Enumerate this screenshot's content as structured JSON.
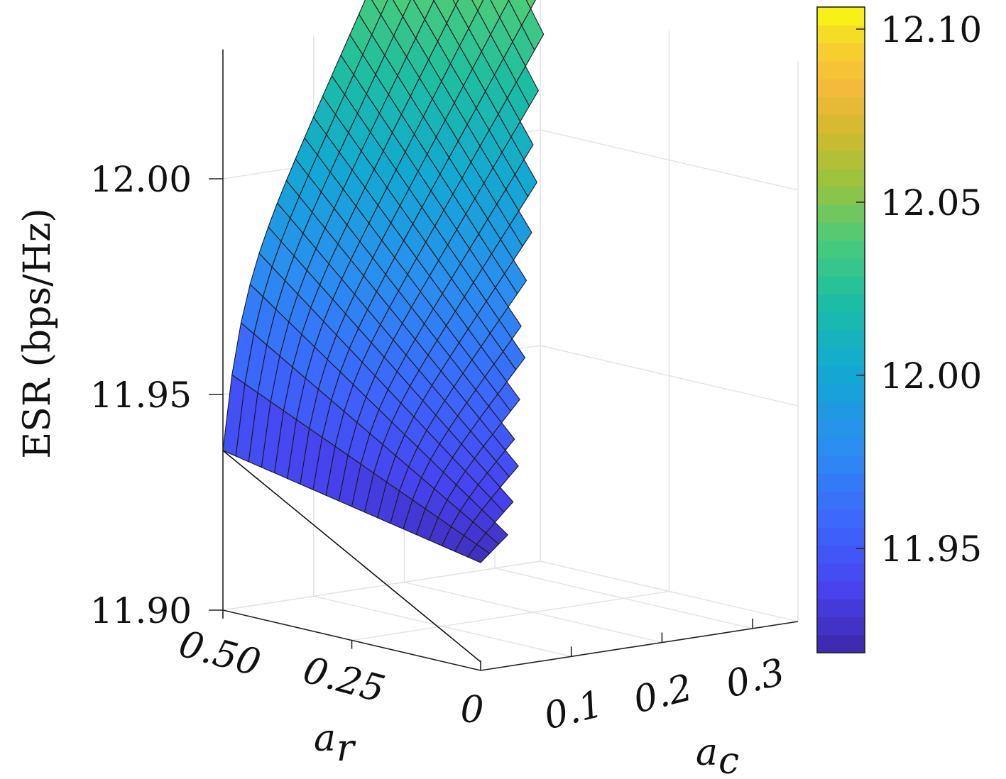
{
  "chart_data": {
    "type": "surface",
    "title": "",
    "zlabel": "ESR (bps/Hz)",
    "xlabel": "a_c",
    "ylabel": "a_r",
    "xlabel_parts": {
      "base": "a",
      "sub": "c"
    },
    "ylabel_parts": {
      "base": "a",
      "sub": "r"
    },
    "x_ticks": [
      "0",
      "0.1",
      "0.2",
      "0.3"
    ],
    "y_ticks": [
      "0.50",
      "0.25"
    ],
    "z_ticks": [
      "11.90",
      "11.95",
      "12.00"
    ],
    "colorbar_ticks": [
      "11.95",
      "12.00",
      "12.05",
      "12.10"
    ],
    "xlim": [
      0,
      0.35
    ],
    "ylim": [
      0,
      0.5
    ],
    "zlim": [
      11.9,
      12.03
    ],
    "clim": [
      11.92,
      12.105
    ],
    "colormap": "parula",
    "grid": true,
    "surface_description_values": {
      "a_r_samples": [
        0.5,
        0.45,
        0.4,
        0.35,
        0.3,
        0.25,
        0.2,
        0.15,
        0.1,
        0.05,
        0.0
      ],
      "a_c_range": [
        0,
        0.34
      ],
      "esr_min": 11.9,
      "esr_max": 12.1
    }
  }
}
